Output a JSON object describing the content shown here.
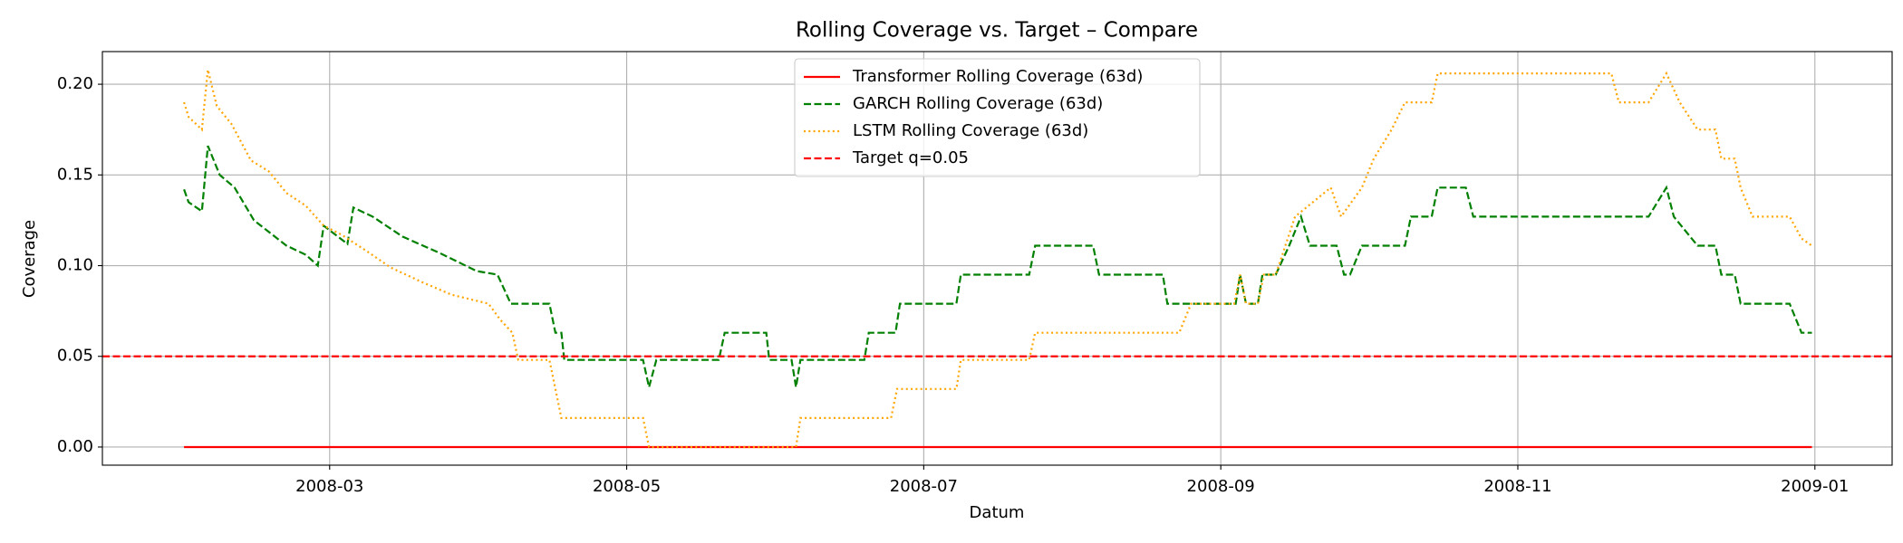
{
  "chart_data": {
    "type": "line",
    "title": "Rolling Coverage vs. Target – Compare",
    "x_label": "Datum",
    "y_label": "Coverage",
    "xlim": [
      1.47,
      13.52
    ],
    "ylim": [
      -0.01,
      0.218
    ],
    "xticks": [
      {
        "value": 3,
        "label": "2008-03"
      },
      {
        "value": 5,
        "label": "2008-05"
      },
      {
        "value": 7,
        "label": "2008-07"
      },
      {
        "value": 9,
        "label": "2008-09"
      },
      {
        "value": 11,
        "label": "2008-11"
      },
      {
        "value": 13,
        "label": "2009-01"
      }
    ],
    "yticks": [
      {
        "value": 0,
        "label": "0.00"
      },
      {
        "value": 0.05,
        "label": "0.05"
      },
      {
        "value": 0.1,
        "label": "0.10"
      },
      {
        "value": 0.15,
        "label": "0.15"
      },
      {
        "value": 0.2,
        "label": "0.20"
      }
    ],
    "grid": true,
    "legend": "upper center",
    "series": [
      {
        "name": "Transformer Rolling Coverage (63d)",
        "color": "#ff0000",
        "style": "solid",
        "x": [
          2.02,
          12.98
        ],
        "values": [
          0,
          0
        ]
      },
      {
        "name": "GARCH Rolling Coverage (63d)",
        "color": "#008000",
        "style": "dashed",
        "x": [
          2.02,
          2.05,
          2.14,
          2.18,
          2.26,
          2.36,
          2.49,
          2.71,
          2.84,
          2.92,
          2.96,
          3.12,
          3.16,
          3.29,
          3.49,
          3.74,
          3.99,
          4.13,
          4.22,
          4.48,
          4.52,
          4.56,
          4.58,
          5.11,
          5.15,
          5.2,
          5.62,
          5.66,
          5.94,
          5.96,
          6.11,
          6.14,
          6.17,
          6.6,
          6.63,
          6.81,
          6.84,
          7.22,
          7.25,
          7.71,
          7.75,
          8.14,
          8.18,
          8.61,
          8.64,
          9.1,
          9.13,
          9.17,
          9.25,
          9.28,
          9.37,
          9.46,
          9.54,
          9.6,
          9.78,
          9.83,
          9.87,
          9.95,
          10.24,
          10.28,
          10.42,
          10.46,
          10.65,
          10.7,
          11.88,
          12.0,
          12.05,
          12.21,
          12.33,
          12.37,
          12.46,
          12.5,
          12.83,
          12.91,
          12.98
        ],
        "values": [
          0.142,
          0.135,
          0.13,
          0.166,
          0.15,
          0.143,
          0.125,
          0.111,
          0.106,
          0.1,
          0.122,
          0.112,
          0.132,
          0.127,
          0.116,
          0.107,
          0.097,
          0.095,
          0.079,
          0.079,
          0.063,
          0.063,
          0.048,
          0.048,
          0.033,
          0.048,
          0.048,
          0.063,
          0.063,
          0.048,
          0.048,
          0.033,
          0.048,
          0.048,
          0.063,
          0.063,
          0.079,
          0.079,
          0.095,
          0.095,
          0.111,
          0.111,
          0.095,
          0.095,
          0.079,
          0.079,
          0.095,
          0.079,
          0.079,
          0.095,
          0.095,
          0.111,
          0.127,
          0.111,
          0.111,
          0.095,
          0.095,
          0.111,
          0.111,
          0.127,
          0.127,
          0.143,
          0.143,
          0.127,
          0.127,
          0.143,
          0.127,
          0.111,
          0.111,
          0.095,
          0.095,
          0.079,
          0.079,
          0.063,
          0.063
        ]
      },
      {
        "name": "LSTM Rolling Coverage (63d)",
        "color": "#ffa500",
        "style": "dotted",
        "x": [
          2.02,
          2.05,
          2.14,
          2.18,
          2.24,
          2.34,
          2.47,
          2.59,
          2.71,
          2.84,
          2.96,
          3.08,
          3.25,
          3.41,
          3.62,
          3.82,
          4.07,
          4.15,
          4.23,
          4.27,
          4.48,
          4.52,
          4.56,
          5.11,
          5.15,
          6.14,
          6.17,
          6.78,
          6.82,
          7.22,
          7.25,
          7.71,
          7.75,
          8.72,
          8.8,
          9.09,
          9.13,
          9.17,
          9.25,
          9.29,
          9.37,
          9.5,
          9.62,
          9.74,
          9.81,
          9.95,
          10.03,
          10.15,
          10.24,
          10.42,
          10.46,
          11.63,
          11.68,
          11.88,
          12.0,
          12.09,
          12.21,
          12.33,
          12.37,
          12.46,
          12.5,
          12.58,
          12.83,
          12.91,
          12.98
        ],
        "values": [
          0.19,
          0.182,
          0.175,
          0.208,
          0.188,
          0.178,
          0.158,
          0.152,
          0.14,
          0.133,
          0.122,
          0.117,
          0.108,
          0.099,
          0.091,
          0.084,
          0.079,
          0.07,
          0.063,
          0.048,
          0.048,
          0.032,
          0.016,
          0.016,
          0.0,
          0.0,
          0.016,
          0.016,
          0.032,
          0.032,
          0.048,
          0.048,
          0.063,
          0.063,
          0.079,
          0.079,
          0.095,
          0.079,
          0.079,
          0.095,
          0.095,
          0.127,
          0.135,
          0.143,
          0.127,
          0.143,
          0.159,
          0.175,
          0.19,
          0.19,
          0.206,
          0.206,
          0.19,
          0.19,
          0.206,
          0.19,
          0.175,
          0.175,
          0.159,
          0.159,
          0.143,
          0.127,
          0.127,
          0.115,
          0.111
        ]
      },
      {
        "name": "Target q=0.05",
        "color": "#ff0000",
        "style": "dashed",
        "hline": 0.05
      }
    ]
  }
}
